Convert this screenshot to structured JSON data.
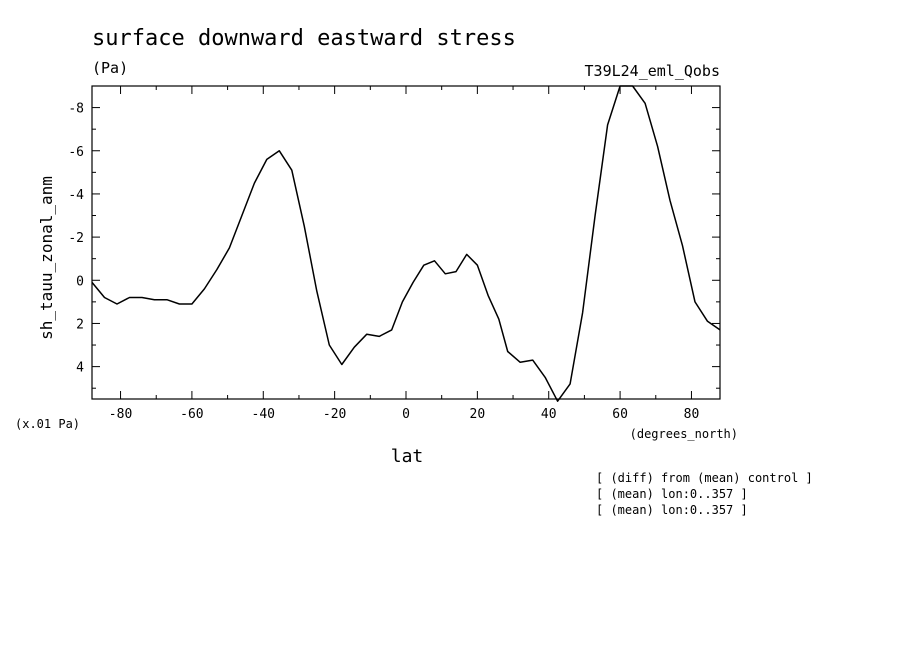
{
  "header": {
    "title": "surface downward eastward stress",
    "units": "(Pa)",
    "run": "T39L24_eml_Qobs"
  },
  "notes": [
    "[ (diff) from (mean) control ]",
    "[ (mean) lon:0..357 ]",
    "[ (mean) lon:0..357 ]"
  ],
  "chart_data": {
    "type": "line",
    "title": "surface downward eastward stress",
    "ylabel": "sh_tauu_zonal_anm",
    "xlabel": "lat",
    "x_units": "(degrees_north)",
    "y_scale_note": "(x.01 Pa)",
    "y_inverted": true,
    "xlim": [
      -88,
      88
    ],
    "ylim": [
      5.5,
      -9
    ],
    "x_ticks": [
      -80,
      -60,
      -40,
      -20,
      0,
      20,
      40,
      60,
      80
    ],
    "x_tick_labels": [
      "-80",
      "-60",
      "-40",
      "-20",
      "0",
      "20",
      "40",
      "60",
      "80"
    ],
    "y_ticks": [
      -8,
      -6,
      -4,
      -2,
      0,
      2,
      4
    ],
    "y_tick_labels": [
      "-8",
      "-6",
      "-4",
      "-2",
      "0",
      "2",
      "4"
    ],
    "grid": false,
    "series": [
      {
        "x": [
          -88,
          -84.5,
          -81,
          -77.5,
          -74,
          -70.5,
          -67,
          -63.5,
          -60,
          -56.5,
          -53,
          -49.5,
          -46,
          -42.5,
          -39,
          -35.5,
          -32,
          -28.5,
          -25,
          -21.5,
          -18,
          -14.5,
          -11,
          -7.5,
          -4,
          -1,
          2,
          5,
          8,
          11,
          14,
          17,
          20,
          23,
          26,
          28.5,
          32,
          35.5,
          39,
          42.5,
          46,
          49.5,
          53,
          56.5,
          60,
          63.5,
          67,
          70.5,
          74,
          77.5,
          81,
          84.5,
          88
        ],
        "values": [
          0.1,
          0.8,
          1.1,
          0.8,
          0.8,
          0.9,
          0.9,
          1.1,
          1.1,
          0.4,
          -0.5,
          -1.5,
          -3.0,
          -4.5,
          -5.6,
          -6.0,
          -5.1,
          -2.5,
          0.5,
          3.0,
          3.9,
          3.1,
          2.5,
          2.6,
          2.3,
          1.0,
          0.1,
          -0.7,
          -0.9,
          -0.3,
          -0.4,
          -1.2,
          -0.7,
          0.7,
          1.8,
          3.3,
          3.8,
          3.7,
          4.5,
          5.6,
          4.8,
          1.5,
          -3.0,
          -7.2,
          -9.0,
          -9.0,
          -8.2,
          -6.2,
          -3.7,
          -1.6,
          1.0,
          1.9,
          2.3
        ]
      }
    ]
  }
}
